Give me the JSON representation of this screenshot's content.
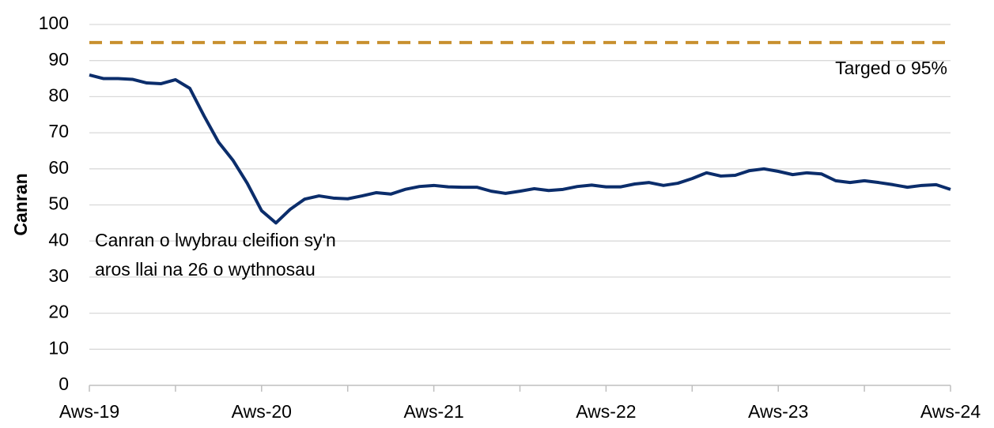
{
  "chart_data": {
    "type": "line",
    "y_label": "Canran",
    "categories": [
      "Aws-19",
      null,
      null,
      null,
      null,
      null,
      null,
      null,
      null,
      null,
      null,
      null,
      "Aws-20",
      null,
      null,
      null,
      null,
      null,
      null,
      null,
      null,
      null,
      null,
      null,
      "Aws-21",
      null,
      null,
      null,
      null,
      null,
      null,
      null,
      null,
      null,
      null,
      null,
      "Aws-22",
      null,
      null,
      null,
      null,
      null,
      null,
      null,
      null,
      null,
      null,
      null,
      "Aws-23",
      null,
      null,
      null,
      null,
      null,
      null,
      null,
      null,
      null,
      null,
      null,
      "Aws-24"
    ],
    "series": [
      {
        "name": "Canran o lwybrau cleifion sy'n aros llai na 26 o wythnosau",
        "color": "#0b2d6b",
        "values": [
          86,
          85,
          85,
          84.8,
          83.8,
          83.6,
          84.7,
          82.3,
          74.6,
          67.4,
          62.4,
          56,
          48.4,
          45,
          48.8,
          51.6,
          52.5,
          51.9,
          51.7,
          52.5,
          53.4,
          53,
          54.3,
          55.1,
          55.4,
          55,
          54.9,
          54.9,
          53.8,
          53.2,
          53.8,
          54.5,
          54,
          54.3,
          55.1,
          55.5,
          55,
          55,
          55.8,
          56.2,
          55.4,
          56,
          57.3,
          58.9,
          58,
          58.2,
          59.5,
          60,
          59.3,
          58.4,
          58.9,
          58.6,
          56.7,
          56.2,
          56.7,
          56.2,
          55.6,
          54.9,
          55.4,
          55.6,
          54.3
        ]
      },
      {
        "name": "Targed o 95%",
        "color": "#c8902e",
        "dashed": true,
        "values": [
          95,
          95,
          95,
          95,
          95,
          95,
          95,
          95,
          95,
          95,
          95,
          95,
          95,
          95,
          95,
          95,
          95,
          95,
          95,
          95,
          95,
          95,
          95,
          95,
          95,
          95,
          95,
          95,
          95,
          95,
          95,
          95,
          95,
          95,
          95,
          95,
          95,
          95,
          95,
          95,
          95,
          95,
          95,
          95,
          95,
          95,
          95,
          95,
          95,
          95,
          95,
          95,
          95,
          95,
          95,
          95,
          95,
          95,
          95,
          95,
          95
        ]
      }
    ],
    "ylim": [
      0,
      100
    ],
    "yticks": [
      0,
      10,
      20,
      30,
      40,
      50,
      60,
      70,
      80,
      90,
      100
    ],
    "grid": true
  }
}
